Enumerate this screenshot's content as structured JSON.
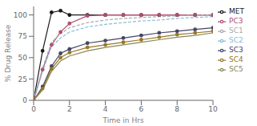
{
  "chart_data": {
    "type": "line",
    "xlabel": "Time in Hrs",
    "ylabel": "% Drug Release",
    "x": [
      0,
      0.5,
      1.0,
      1.5,
      2.0,
      3,
      4,
      5,
      6,
      7,
      8,
      9,
      10
    ],
    "xlim": [
      0,
      10
    ],
    "ylim": [
      0,
      110
    ],
    "xticks": [
      0,
      2,
      4,
      6,
      8,
      10
    ],
    "yticks": [
      0,
      25,
      50,
      75,
      100
    ],
    "grid": false,
    "legend": "right",
    "series": [
      {
        "name": "MET",
        "color": "#1a1a1a",
        "marker": "circle",
        "line_style": "solid",
        "values": [
          0,
          58,
          103,
          105,
          100,
          100,
          100,
          100,
          100,
          100,
          100,
          100,
          100
        ]
      },
      {
        "name": "PC3",
        "color": "#b05070",
        "marker": "circle",
        "line_style": "solid",
        "values": [
          0,
          36,
          65,
          80,
          90,
          99,
          100,
          100,
          100,
          100,
          100,
          100,
          100
        ]
      },
      {
        "name": "SC1",
        "color": "#aaaaaa",
        "marker": "none",
        "line_style": "dashed",
        "values": [
          0,
          38,
          68,
          78,
          85,
          91,
          94,
          96,
          97,
          98,
          99,
          100,
          100
        ]
      },
      {
        "name": "SC2",
        "color": "#88bbdd",
        "marker": "none",
        "line_style": "dashed",
        "values": [
          0,
          34,
          63,
          73,
          80,
          86,
          89,
          91,
          93,
          94,
          96,
          97,
          98
        ]
      },
      {
        "name": "SC3",
        "color": "#444466",
        "marker": "circle",
        "line_style": "solid",
        "values": [
          0,
          16,
          40,
          55,
          60,
          67,
          70,
          73,
          76,
          79,
          81,
          83,
          85
        ]
      },
      {
        "name": "SC4",
        "color": "#997722",
        "marker": "circle",
        "line_style": "solid",
        "values": [
          0,
          14,
          37,
          50,
          56,
          62,
          65,
          68,
          71,
          74,
          77,
          79,
          81
        ]
      },
      {
        "name": "SC5",
        "color": "#888855",
        "marker": "none",
        "line_style": "solid",
        "values": [
          0,
          12,
          34,
          46,
          52,
          58,
          62,
          65,
          68,
          71,
          74,
          76,
          79
        ]
      }
    ]
  }
}
